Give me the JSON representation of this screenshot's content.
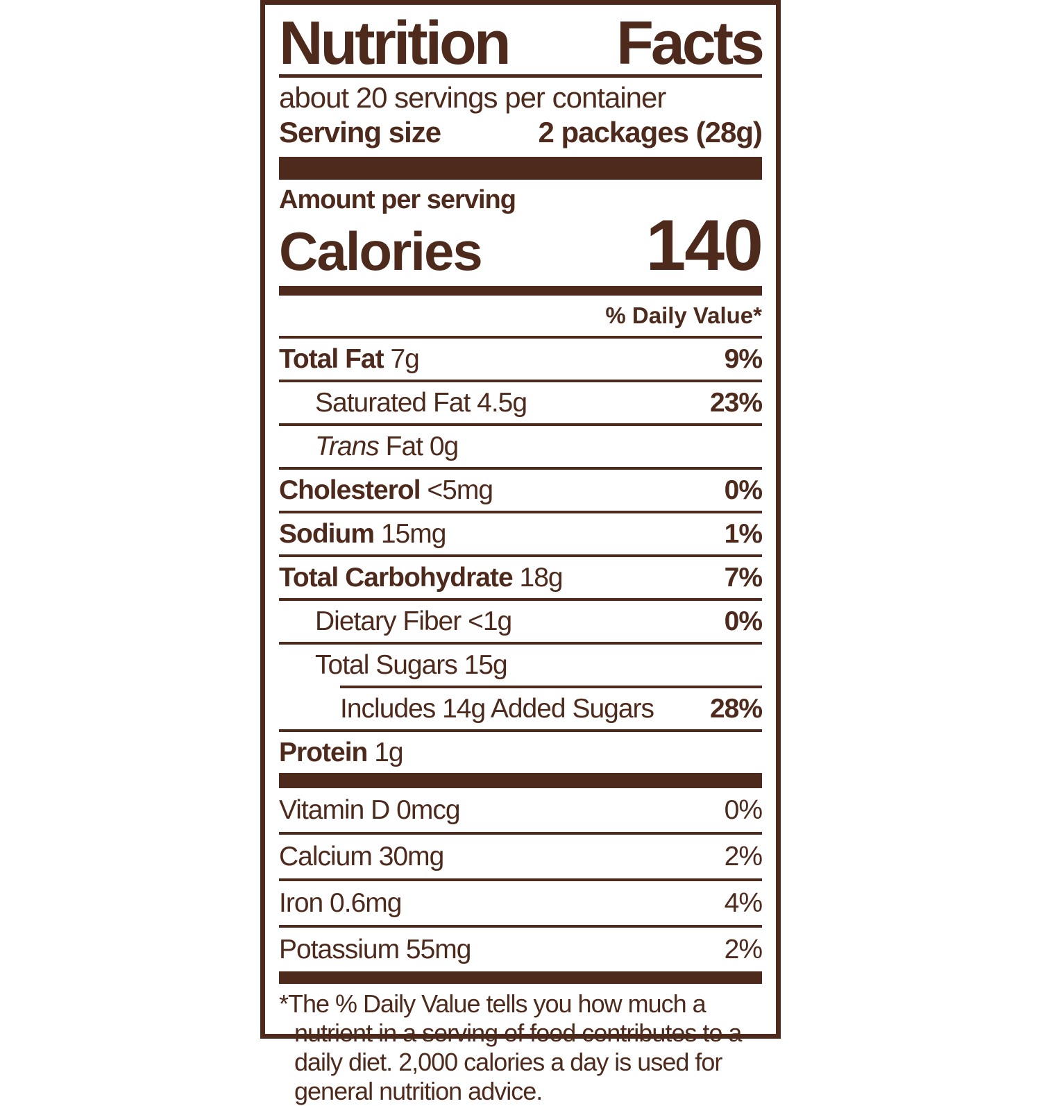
{
  "label": {
    "title_left": "Nutrition",
    "title_right": "Facts",
    "servings_per_container": "about 20 servings per container",
    "serving_size_label": "Serving size",
    "serving_size_value": "2 packages (28g)",
    "amount_per_serving": "Amount per serving",
    "calories_label": "Calories",
    "calories_value": "140",
    "dv_header": "% Daily Value*",
    "nutrients": [
      {
        "name": "Total Fat",
        "amount": "7g",
        "dv": "9%"
      },
      {
        "name": "Saturated Fat",
        "amount": "4.5g",
        "dv": "23%"
      },
      {
        "name": "Trans",
        "amount": "Fat 0g",
        "dv": ""
      },
      {
        "name": "Cholesterol",
        "amount": "<5mg",
        "dv": "0%"
      },
      {
        "name": "Sodium",
        "amount": "15mg",
        "dv": "1%"
      },
      {
        "name": "Total Carbohydrate",
        "amount": "18g",
        "dv": "7%"
      },
      {
        "name": "Dietary Fiber",
        "amount": "<1g",
        "dv": "0%"
      },
      {
        "name": "Total Sugars",
        "amount": "15g",
        "dv": ""
      },
      {
        "name": "Includes 14g Added Sugars",
        "amount": "",
        "dv": "28%"
      },
      {
        "name": "Protein",
        "amount": "1g",
        "dv": ""
      }
    ],
    "micronutrients": [
      {
        "name": "Vitamin D 0mcg",
        "dv": "0%"
      },
      {
        "name": "Calcium 30mg",
        "dv": "2%"
      },
      {
        "name": "Iron 0.6mg",
        "dv": "4%"
      },
      {
        "name": "Potassium 55mg",
        "dv": "2%"
      }
    ],
    "footnote": "*The % Daily Value tells you how much a nutrient in a serving of food contributes to a daily diet. 2,000 calories a day is used for general nutrition advice."
  },
  "colors": {
    "brown": "#4d2a1c",
    "background": "#ffffff"
  }
}
